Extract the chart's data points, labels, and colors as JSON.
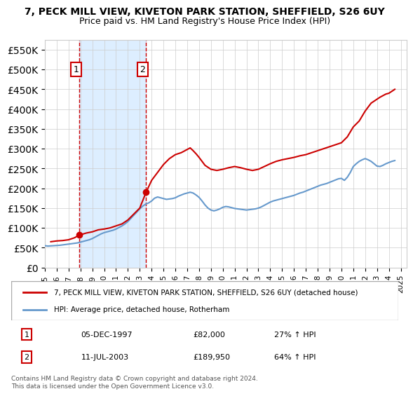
{
  "title_line1": "7, PECK MILL VIEW, KIVETON PARK STATION, SHEFFIELD, S26 6UY",
  "title_line2": "Price paid vs. HM Land Registry's House Price Index (HPI)",
  "ylabel_ticks": [
    "£0",
    "£50K",
    "£100K",
    "£150K",
    "£200K",
    "£250K",
    "£300K",
    "£350K",
    "£400K",
    "£450K",
    "£500K",
    "£550K"
  ],
  "ytick_values": [
    0,
    50000,
    100000,
    150000,
    200000,
    250000,
    300000,
    350000,
    400000,
    450000,
    500000,
    550000
  ],
  "ylim": [
    0,
    575000
  ],
  "xlim_start": 1995.0,
  "xlim_end": 2025.5,
  "sale1_x": 1997.92,
  "sale1_y": 82000,
  "sale1_label": "1",
  "sale1_date": "05-DEC-1997",
  "sale1_price": "£82,000",
  "sale1_hpi": "27% ↑ HPI",
  "sale2_x": 2003.53,
  "sale2_y": 189950,
  "sale2_label": "2",
  "sale2_date": "11-JUL-2003",
  "sale2_price": "£189,950",
  "sale2_hpi": "64% ↑ HPI",
  "hpi_color": "#6699cc",
  "price_color": "#cc0000",
  "shade_color": "#ddeeff",
  "grid_color": "#cccccc",
  "legend_line1": "7, PECK MILL VIEW, KIVETON PARK STATION, SHEFFIELD, S26 6UY (detached house)",
  "legend_line2": "HPI: Average price, detached house, Rotherham",
  "footnote": "Contains HM Land Registry data © Crown copyright and database right 2024.\nThis data is licensed under the Open Government Licence v3.0.",
  "hpi_data_x": [
    1995.0,
    1995.25,
    1995.5,
    1995.75,
    1996.0,
    1996.25,
    1996.5,
    1996.75,
    1997.0,
    1997.25,
    1997.5,
    1997.75,
    1998.0,
    1998.25,
    1998.5,
    1998.75,
    1999.0,
    1999.25,
    1999.5,
    1999.75,
    2000.0,
    2000.25,
    2000.5,
    2000.75,
    2001.0,
    2001.25,
    2001.5,
    2001.75,
    2002.0,
    2002.25,
    2002.5,
    2002.75,
    2003.0,
    2003.25,
    2003.5,
    2003.75,
    2004.0,
    2004.25,
    2004.5,
    2004.75,
    2005.0,
    2005.25,
    2005.5,
    2005.75,
    2006.0,
    2006.25,
    2006.5,
    2006.75,
    2007.0,
    2007.25,
    2007.5,
    2007.75,
    2008.0,
    2008.25,
    2008.5,
    2008.75,
    2009.0,
    2009.25,
    2009.5,
    2009.75,
    2010.0,
    2010.25,
    2010.5,
    2010.75,
    2011.0,
    2011.25,
    2011.5,
    2011.75,
    2012.0,
    2012.25,
    2012.5,
    2012.75,
    2013.0,
    2013.25,
    2013.5,
    2013.75,
    2014.0,
    2014.25,
    2014.5,
    2014.75,
    2015.0,
    2015.25,
    2015.5,
    2015.75,
    2016.0,
    2016.25,
    2016.5,
    2016.75,
    2017.0,
    2017.25,
    2017.5,
    2017.75,
    2018.0,
    2018.25,
    2018.5,
    2018.75,
    2019.0,
    2019.25,
    2019.5,
    2019.75,
    2020.0,
    2020.25,
    2020.5,
    2020.75,
    2021.0,
    2021.25,
    2021.5,
    2021.75,
    2022.0,
    2022.25,
    2022.5,
    2022.75,
    2023.0,
    2023.25,
    2023.5,
    2023.75,
    2024.0,
    2024.25,
    2024.5
  ],
  "hpi_data_y": [
    55000,
    54000,
    54500,
    55000,
    55500,
    56000,
    57000,
    58000,
    59000,
    60000,
    61000,
    62000,
    64000,
    66000,
    68000,
    70000,
    73000,
    77000,
    81000,
    85000,
    88000,
    90000,
    92000,
    94000,
    97000,
    101000,
    105000,
    110000,
    116000,
    124000,
    132000,
    140000,
    148000,
    155000,
    160000,
    163000,
    168000,
    175000,
    178000,
    176000,
    174000,
    172000,
    173000,
    174000,
    176000,
    180000,
    183000,
    186000,
    188000,
    190000,
    188000,
    183000,
    177000,
    168000,
    158000,
    150000,
    145000,
    143000,
    145000,
    148000,
    152000,
    154000,
    153000,
    151000,
    149000,
    148000,
    147000,
    146000,
    145000,
    146000,
    147000,
    148000,
    150000,
    153000,
    157000,
    161000,
    165000,
    168000,
    170000,
    172000,
    174000,
    176000,
    178000,
    180000,
    182000,
    185000,
    188000,
    190000,
    193000,
    196000,
    199000,
    202000,
    205000,
    208000,
    210000,
    212000,
    215000,
    218000,
    221000,
    224000,
    225000,
    220000,
    228000,
    240000,
    255000,
    262000,
    268000,
    272000,
    275000,
    272000,
    268000,
    262000,
    256000,
    255000,
    258000,
    262000,
    265000,
    268000,
    270000
  ],
  "price_data_x": [
    1995.5,
    1996.0,
    1996.5,
    1997.0,
    1997.5,
    1997.92,
    1998.5,
    1999.0,
    1999.5,
    2000.0,
    2000.5,
    2001.0,
    2001.5,
    2002.0,
    2002.5,
    2003.0,
    2003.53,
    2004.0,
    2004.5,
    2005.0,
    2005.5,
    2006.0,
    2006.5,
    2007.0,
    2007.25,
    2007.5,
    2007.75,
    2008.0,
    2008.25,
    2008.5,
    2009.0,
    2009.5,
    2010.0,
    2010.5,
    2011.0,
    2011.5,
    2012.0,
    2012.5,
    2013.0,
    2013.5,
    2014.0,
    2014.5,
    2015.0,
    2015.5,
    2016.0,
    2016.5,
    2017.0,
    2017.5,
    2018.0,
    2018.5,
    2019.0,
    2019.5,
    2020.0,
    2020.5,
    2021.0,
    2021.5,
    2022.0,
    2022.25,
    2022.5,
    2022.75,
    2023.0,
    2023.25,
    2023.75,
    2024.0,
    2024.25,
    2024.5
  ],
  "price_data_y": [
    65000,
    67000,
    68000,
    70000,
    75000,
    82000,
    87000,
    90000,
    95000,
    97000,
    100000,
    105000,
    110000,
    120000,
    135000,
    150000,
    189950,
    220000,
    240000,
    260000,
    275000,
    285000,
    290000,
    298000,
    302000,
    295000,
    287000,
    278000,
    268000,
    258000,
    248000,
    245000,
    248000,
    252000,
    255000,
    252000,
    248000,
    245000,
    248000,
    255000,
    262000,
    268000,
    272000,
    275000,
    278000,
    282000,
    285000,
    290000,
    295000,
    300000,
    305000,
    310000,
    315000,
    330000,
    355000,
    370000,
    395000,
    405000,
    415000,
    420000,
    425000,
    430000,
    438000,
    440000,
    445000,
    450000
  ]
}
